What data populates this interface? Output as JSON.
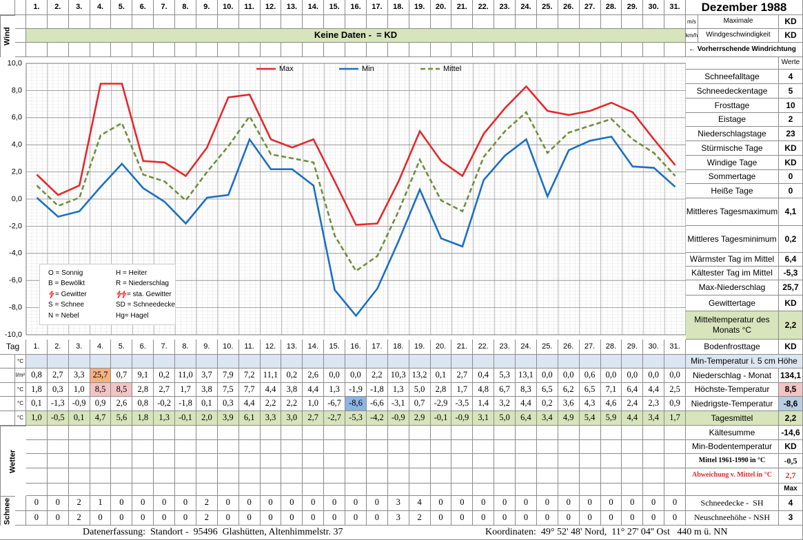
{
  "header": {
    "title": "Dezember 1988",
    "wind_label": "Wind",
    "unit_ms": "m/s",
    "unit_kmh": "km/h",
    "wind_max_label": "Maximale",
    "wind_max_label2": "Windgeschwindigkeit",
    "wind_ms": "KD",
    "wind_kmh": "KD",
    "no_data": "Keine Daten -  = KD",
    "wind_direction": "← Vorherrschende Windrichtung"
  },
  "chart_data": {
    "type": "line",
    "categories": [
      "1.",
      "2.",
      "3.",
      "4.",
      "5.",
      "6.",
      "7.",
      "8.",
      "9.",
      "10.",
      "11.",
      "12.",
      "13.",
      "14.",
      "15.",
      "16.",
      "17.",
      "18.",
      "19.",
      "20.",
      "21.",
      "22.",
      "23.",
      "24.",
      "25.",
      "26.",
      "27.",
      "28.",
      "29.",
      "30.",
      "31."
    ],
    "series": [
      {
        "name": "Max",
        "color": "#e8262b",
        "dashed": false,
        "values": [
          1.8,
          0.3,
          1.0,
          8.5,
          8.5,
          2.8,
          2.7,
          1.7,
          3.8,
          7.5,
          7.7,
          4.4,
          3.8,
          4.4,
          1.3,
          -1.9,
          -1.8,
          1.3,
          5.0,
          2.8,
          1.7,
          4.8,
          6.7,
          8.3,
          6.5,
          6.2,
          6.5,
          7.1,
          6.4,
          4.4,
          2.5
        ],
        "value_labels": [
          "1,8",
          "0,3",
          "1,0",
          "8,5",
          "8,5",
          "2,8",
          "2,7",
          "1,7",
          "3,8",
          "7,5",
          "7,7",
          "4,4",
          "3,8",
          "4,4",
          "1,3",
          "-1,9",
          "-1,8",
          "1,3",
          "5,0",
          "2,8",
          "1,7",
          "4,8",
          "6,7",
          "8,3",
          "6,5",
          "6,2",
          "6,5",
          "7,1",
          "6,4",
          "4,4",
          "2,5"
        ]
      },
      {
        "name": "Min",
        "color": "#1a6fc4",
        "dashed": false,
        "values": [
          0.1,
          -1.3,
          -0.9,
          0.9,
          2.6,
          0.8,
          -0.2,
          -1.8,
          0.1,
          0.3,
          4.4,
          2.2,
          2.2,
          1.0,
          -6.7,
          -8.6,
          -6.6,
          -3.1,
          0.7,
          -2.9,
          -3.5,
          1.4,
          3.2,
          4.4,
          0.2,
          3.6,
          4.3,
          4.6,
          2.4,
          2.3,
          0.9
        ],
        "value_labels": [
          "0,1",
          "-1,3",
          "-0,9",
          "0,9",
          "2,6",
          "0,8",
          "-0,2",
          "-1,8",
          "0,1",
          "0,3",
          "4,4",
          "2,2",
          "2,2",
          "1,0",
          "-6,7",
          "-8,6",
          "-6,6",
          "-3,1",
          "0,7",
          "-2,9",
          "-3,5",
          "1,4",
          "3,2",
          "4,4",
          "0,2",
          "3,6",
          "4,3",
          "4,6",
          "2,4",
          "2,3",
          "0,9"
        ]
      },
      {
        "name": "Mittel",
        "color": "#6e8f3b",
        "dashed": true,
        "values": [
          1.0,
          -0.5,
          0.1,
          4.7,
          5.6,
          1.8,
          1.3,
          -0.1,
          2.0,
          3.9,
          6.1,
          3.3,
          3.0,
          2.7,
          -2.7,
          -5.3,
          -4.2,
          -0.9,
          2.9,
          -0.1,
          -0.9,
          3.1,
          5.0,
          6.4,
          3.4,
          4.9,
          5.4,
          5.9,
          4.4,
          3.4,
          1.7
        ],
        "value_labels": [
          "1,0",
          "-0,5",
          "0,1",
          "4,7",
          "5,6",
          "1,8",
          "1,3",
          "-0,1",
          "2,0",
          "3,9",
          "6,1",
          "3,3",
          "3,0",
          "2,7",
          "-2,7",
          "-5,3",
          "-4,2",
          "-0,9",
          "2,9",
          "-0,1",
          "-0,9",
          "3,1",
          "5,0",
          "6,4",
          "3,4",
          "4,9",
          "5,4",
          "5,9",
          "4,4",
          "3,4",
          "1,7"
        ]
      }
    ],
    "ylim": [
      -10,
      10
    ],
    "yticks": [
      {
        "value": 10,
        "label": "10,0"
      },
      {
        "value": 8,
        "label": "8,0"
      },
      {
        "value": 6,
        "label": "6,0"
      },
      {
        "value": 4,
        "label": "4,0"
      },
      {
        "value": 2,
        "label": "2,0"
      },
      {
        "value": 0,
        "label": "0,0"
      },
      {
        "value": -2,
        "label": "-2,0"
      },
      {
        "value": -4,
        "label": "-4,0"
      },
      {
        "value": -6,
        "label": "-6,0"
      },
      {
        "value": -8,
        "label": "-8,0"
      },
      {
        "value": -10,
        "label": "-10,0"
      }
    ],
    "grid": true
  },
  "legend_box": [
    "O = Sonnig",
    "H = Heiter",
    "B = Bewölkt",
    "R = Niederschlag",
    "= Gewitter",
    "= sta. Gewitter",
    "S = Schnee",
    "SD = Schneedecke",
    "N = Nebel",
    "Hg= Hagel"
  ],
  "summary": {
    "header": "Werte",
    "rows": [
      {
        "label": "Schneefalltage",
        "value": "4"
      },
      {
        "label": "Schneedeckentage",
        "value": "5"
      },
      {
        "label": "Frosttage",
        "value": "10"
      },
      {
        "label": "Eistage",
        "value": "2"
      },
      {
        "label": "Niederschlagstage",
        "value": "23"
      },
      {
        "label": "Stürmische Tage",
        "value": "KD"
      },
      {
        "label": "Windige Tage",
        "value": "KD"
      },
      {
        "label": "Sommertage",
        "value": "0"
      },
      {
        "label": "Heiße Tage",
        "value": "0"
      },
      {
        "label": "Mittleres Tagesmaximum",
        "value": "4,1"
      },
      {
        "label": "Mittleres Tagesminimum",
        "value": "0,2"
      },
      {
        "label": "Wärmster Tag im Mittel",
        "value": "6,4"
      },
      {
        "label": "Kältester Tag im Mittel",
        "value": "-5,3"
      },
      {
        "label": "Max-Niederschlag",
        "value": "25,7"
      },
      {
        "label": "Gewittertage",
        "value": "KD"
      },
      {
        "label": "Mitteltemperatur des Monats °C",
        "value": "2,2"
      },
      {
        "label": "Bodenfrosttage",
        "value": "KD"
      }
    ]
  },
  "table": {
    "tag_label": "Tag",
    "units": [
      "°C",
      "l/m²",
      "°C",
      "°C",
      "°C"
    ],
    "precip": [
      "0,8",
      "2,7",
      "3,3",
      "25,7",
      "0,7",
      "9,1",
      "0,2",
      "11,0",
      "3,7",
      "7,9",
      "7,2",
      "11,1",
      "0,2",
      "2,6",
      "0,0",
      "0,0",
      "2,2",
      "10,3",
      "13,2",
      "0,1",
      "2,7",
      "0,4",
      "5,3",
      "13,1",
      "0,0",
      "0,0",
      "0,6",
      "0,0",
      "0,0",
      "0,0",
      "0,0"
    ],
    "min5cm": "Min-Temperatur i. 5 cm Höhe",
    "stats": [
      {
        "label": "Niederschlag - Monat",
        "value": "134,1"
      },
      {
        "label": "Höchste-Temperatur",
        "value": "8,5"
      },
      {
        "label": "Niedrigste-Temperatur",
        "value": "-8,6"
      },
      {
        "label": "Tagesmittel",
        "value": "2,2"
      },
      {
        "label": "Kältesumme",
        "value": "-14,6"
      },
      {
        "label": "Min-Bodentemperatur",
        "value": "KD"
      },
      {
        "label": "Mittel 1961-1990 in °C",
        "value": "-0,5"
      },
      {
        "label": "Abweichung v. Mittel in °C",
        "value": "2,7"
      }
    ],
    "weather_label": "Wetter",
    "max_header": "Max",
    "snow_label": "Schnee",
    "snow": [
      {
        "label": "Schneedecke -  SH",
        "value": "4",
        "days": [
          0,
          0,
          2,
          1,
          0,
          0,
          0,
          0,
          2,
          0,
          0,
          0,
          0,
          0,
          0,
          0,
          0,
          3,
          4,
          0,
          0,
          0,
          0,
          0,
          0,
          0,
          0,
          0,
          0,
          0,
          0
        ]
      },
      {
        "label": "Neuschneehöhe - NSH",
        "value": "3",
        "days": [
          0,
          0,
          2,
          0,
          0,
          0,
          0,
          0,
          2,
          0,
          0,
          0,
          0,
          0,
          0,
          0,
          0,
          3,
          2,
          0,
          0,
          0,
          0,
          0,
          0,
          0,
          0,
          0,
          0,
          0,
          0
        ]
      }
    ]
  },
  "footer": {
    "left": "Datenerfassung:  Standort -  95496  Glashütten, Altenhimmelstr. 37",
    "right": "Koordinaten:  49° 52' 48' Nord,  11° 27' 04'' Ost   440 m ü. NN"
  }
}
